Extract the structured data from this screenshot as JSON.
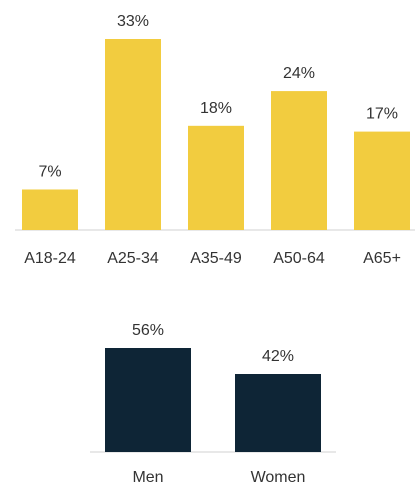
{
  "chart_data": [
    {
      "type": "bar",
      "categories": [
        "A18-24",
        "A25-34",
        "A35-49",
        "A50-64",
        "A65+"
      ],
      "values": [
        7,
        33,
        18,
        24,
        17
      ],
      "value_labels": [
        "7%",
        "33%",
        "18%",
        "24%",
        "17%"
      ],
      "ylim": [
        0,
        33
      ],
      "color": "#F2CC3F",
      "grid": false
    },
    {
      "type": "bar",
      "categories": [
        "Men",
        "Women"
      ],
      "values": [
        56,
        42
      ],
      "value_labels": [
        "56%",
        "42%"
      ],
      "ylim": [
        0,
        56
      ],
      "color": "#0E2536",
      "grid": false
    }
  ]
}
